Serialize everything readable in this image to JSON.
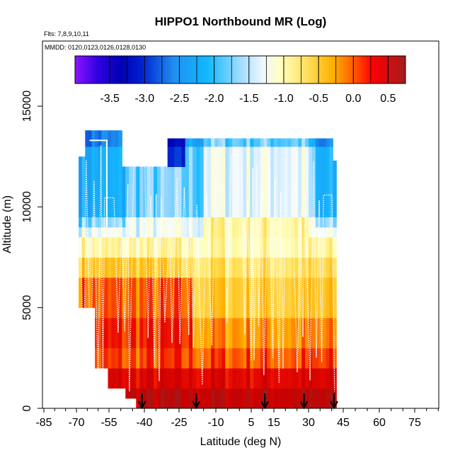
{
  "chart_data": {
    "type": "heatmap",
    "title": "HIPPO1 Northbound MR (Log)",
    "note_flights": "Flts: 7,8,9,10,11",
    "note_dates": "MMDD: 0120,0123,0126,0128,0130",
    "xlabel": "Latitude (deg N)",
    "ylabel": "Altitude (m)",
    "xlim": [
      -85,
      85
    ],
    "ylim": [
      0,
      17500
    ],
    "x_tick_labels": [
      "-85",
      "-70",
      "-55",
      "-40",
      "-25",
      "-10",
      "5",
      "15",
      "30",
      "45",
      "60",
      "75"
    ],
    "x_tick_values": [
      -85,
      -70,
      -55,
      -40,
      -25,
      -10,
      5,
      15,
      30,
      45,
      60,
      75
    ],
    "y_tick_labels": [
      "0",
      "5000",
      "10000",
      "15000"
    ],
    "y_tick_values": [
      0,
      5000,
      10000,
      15000
    ],
    "colorbar": {
      "labels": [
        "-3.5",
        "-3.0",
        "-2.5",
        "-2.0",
        "-1.5",
        "-1.0",
        "-0.5",
        "0.0",
        "0.5"
      ],
      "values": [
        -3.5,
        -3.0,
        -2.5,
        -2.0,
        -1.5,
        -1.0,
        -0.5,
        0.0,
        0.5
      ],
      "range": [
        -4.0,
        0.75
      ]
    },
    "flight_markers_lat": [
      -41,
      -18,
      11,
      28,
      41
    ],
    "colors": {
      "deep_blue": "#0000b4",
      "light_blue": "#30b4f4",
      "pale": "#fffcc0",
      "orange": "#ffb000",
      "red": "#e00000",
      "dark_red": "#a81c1c"
    }
  }
}
